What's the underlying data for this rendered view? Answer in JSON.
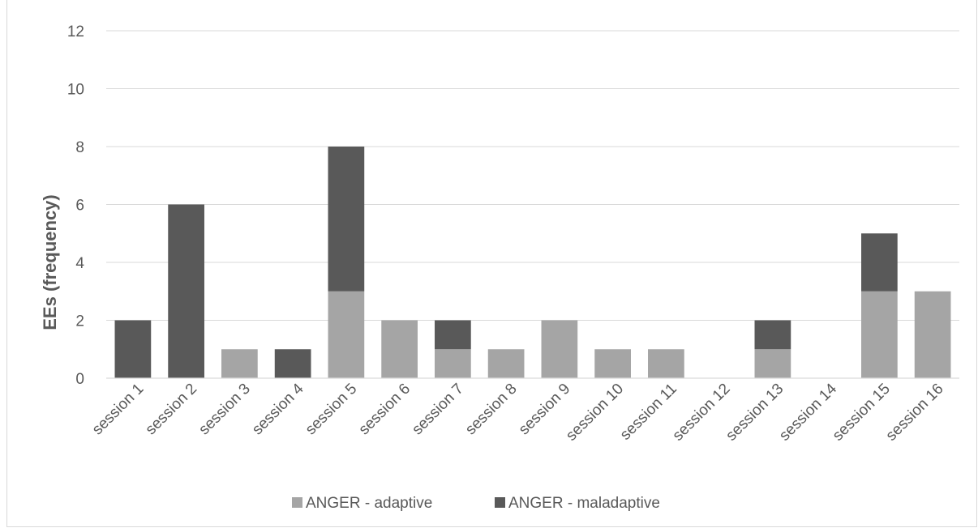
{
  "chart_data": {
    "type": "bar",
    "stacked": true,
    "title": "",
    "xlabel": "",
    "ylabel": "EEs (frequency)",
    "ylim": [
      0,
      12
    ],
    "yticks": [
      0,
      2,
      4,
      6,
      8,
      10,
      12
    ],
    "grid": true,
    "legend_position": "bottom",
    "categories": [
      "session 1",
      "session 2",
      "session 3",
      "session 4",
      "session 5",
      "session 6",
      "session 7",
      "session 8",
      "session 9",
      "session 10",
      "session 11",
      "session 12",
      "session 13",
      "session 14",
      "session 15",
      "session 16"
    ],
    "series": [
      {
        "name": "ANGER - adaptive",
        "color": "#a5a5a5",
        "values": [
          0,
          0,
          1,
          0,
          3,
          2,
          1,
          1,
          2,
          1,
          1,
          0,
          1,
          0,
          3,
          3
        ]
      },
      {
        "name": "ANGER - maladaptive",
        "color": "#595959",
        "values": [
          2,
          6,
          0,
          1,
          5,
          0,
          1,
          0,
          0,
          0,
          0,
          0,
          1,
          0,
          2,
          0
        ]
      }
    ]
  }
}
